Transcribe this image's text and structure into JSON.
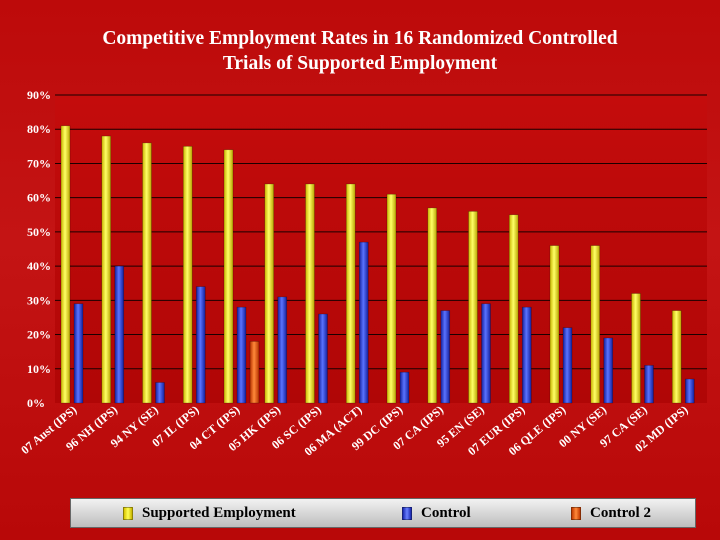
{
  "title": {
    "line1": "Competitive Employment Rates in 16 Randomized Controlled",
    "line2": "Trials of Supported Employment"
  },
  "chart_data": {
    "type": "bar",
    "title": "Competitive Employment Rates in 16 Randomized Controlled Trials of Supported Employment",
    "xlabel": "",
    "ylabel": "",
    "ylim": [
      0,
      90
    ],
    "y_ticks": [
      "0%",
      "10%",
      "20%",
      "30%",
      "40%",
      "50%",
      "60%",
      "70%",
      "80%",
      "90%"
    ],
    "grid": true,
    "categories": [
      "07 Aust (IPS)",
      "96 NH (IPS)",
      "94 NY (SE)",
      "07 IL (IPS)",
      "04 CT (IPS)",
      "05 HK (IPS)",
      "06 SC (IPS)",
      "06 MA (ACT)",
      "99 DC (IPS)",
      "07 CA (IPS)",
      "95 EN (SE)",
      "07 EUR (IPS)",
      "06 QLE (IPS)",
      "00 NY (SE)",
      "97 CA (SE)",
      "02 MD (IPS)"
    ],
    "series": [
      {
        "name": "Supported Employment",
        "color": "#f0e020",
        "values": [
          81,
          78,
          76,
          75,
          74,
          64,
          64,
          64,
          61,
          57,
          56,
          55,
          46,
          46,
          32,
          27
        ]
      },
      {
        "name": "Control",
        "color": "#2a3cf0",
        "values": [
          29,
          40,
          6,
          34,
          28,
          31,
          26,
          47,
          9,
          27,
          29,
          28,
          22,
          19,
          11,
          7
        ]
      },
      {
        "name": "Control 2",
        "color": "#f05a10",
        "values": [
          null,
          null,
          null,
          null,
          18,
          null,
          null,
          null,
          null,
          null,
          null,
          null,
          null,
          null,
          null,
          null
        ]
      }
    ],
    "legend": [
      "Supported Employment",
      "Control",
      "Control 2"
    ],
    "legend_position": "bottom"
  }
}
